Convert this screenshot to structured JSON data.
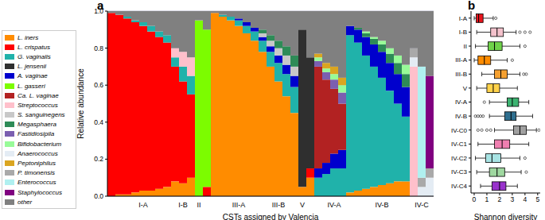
{
  "chart_data": [
    {
      "type": "bar",
      "panel_label": "a",
      "stacked": true,
      "grid": true,
      "legend": "left",
      "xlabel": "CSTs assigned by Valencia",
      "ylabel": "Relative abundance",
      "ylim": [
        0,
        1
      ],
      "yticks": [
        {
          "value": 0,
          "label": "0.0"
        },
        0.2,
        0.4,
        0.6,
        0.8,
        {
          "value": 1,
          "label": "1.0"
        }
      ],
      "categories": [
        null,
        null,
        null,
        null,
        "I-A",
        null,
        null,
        null,
        null,
        "I-B",
        null,
        "II",
        null,
        null,
        null,
        null,
        "III-A",
        null,
        null,
        null,
        null,
        "III-B",
        null,
        null,
        "V",
        null,
        null,
        null,
        "IV-A",
        null,
        null,
        null,
        null,
        null,
        "IV-B",
        null,
        null,
        null,
        null,
        "IV-C",
        null
      ],
      "series": [
        {
          "name": "L. iners",
          "color": "#ff8c00",
          "values": [
            0,
            0.01,
            0.01,
            0.02,
            0.03,
            0.03,
            0.04,
            0.05,
            0.08,
            0.07,
            0.1,
            0,
            0,
            0.99,
            0.97,
            0.95,
            0.92,
            0.88,
            0.84,
            0.78,
            0.7,
            0.62,
            0.54,
            0.45,
            0.05,
            0.1,
            0,
            0,
            0,
            0,
            0.02,
            0.03,
            0.04,
            0.05,
            0.06,
            0.07,
            0.08,
            0.08,
            0,
            0,
            0
          ]
        },
        {
          "name": "L. crispatus",
          "color": "#ff0000",
          "values": [
            0.99,
            0.97,
            0.95,
            0.92,
            0.89,
            0.86,
            0.82,
            0.78,
            0.62,
            0.55,
            0.45,
            0,
            0.05,
            0,
            0,
            0,
            0,
            0,
            0,
            0,
            0,
            0,
            0,
            0,
            0,
            0.05,
            0,
            0,
            0,
            0,
            0,
            0,
            0,
            0,
            0,
            0,
            0,
            0,
            0,
            0,
            0
          ]
        },
        {
          "name": "G. vaginalis",
          "color": "#20b2aa",
          "values": [
            0,
            0,
            0.01,
            0.01,
            0.02,
            0.03,
            0.03,
            0.04,
            0.05,
            0.08,
            0.1,
            0,
            0,
            0,
            0.01,
            0.02,
            0.03,
            0.04,
            0.05,
            0.06,
            0.08,
            0.1,
            0.12,
            0.14,
            0,
            0,
            0.1,
            0.12,
            0.15,
            0.15,
            0.85,
            0.8,
            0.72,
            0.65,
            0.58,
            0.5,
            0.42,
            0.35,
            0,
            0,
            0
          ]
        },
        {
          "name": "L. jensenii",
          "color": "#2f2f2f",
          "values": [
            0,
            0,
            0,
            0,
            0,
            0,
            0,
            0,
            0,
            0,
            0,
            0,
            0,
            0,
            0,
            0,
            0,
            0,
            0,
            0,
            0,
            0,
            0,
            0,
            0.85,
            0.6,
            0,
            0,
            0,
            0,
            0,
            0,
            0,
            0,
            0,
            0,
            0,
            0,
            0,
            0,
            0
          ]
        },
        {
          "name": "A. vaginae",
          "color": "#0000cd",
          "values": [
            0,
            0,
            0,
            0,
            0,
            0,
            0,
            0,
            0,
            0,
            0,
            0,
            0,
            0,
            0,
            0,
            0.01,
            0.02,
            0.02,
            0.02,
            0.03,
            0.04,
            0.05,
            0.06,
            0,
            0,
            0.05,
            0.06,
            0.08,
            0.1,
            0.05,
            0.07,
            0.1,
            0.12,
            0.14,
            0.15,
            0.16,
            0.16,
            0,
            0,
            0
          ]
        },
        {
          "name": "L. gasseri",
          "color": "#7cfc00",
          "values": [
            0,
            0,
            0,
            0,
            0,
            0,
            0,
            0,
            0,
            0,
            0,
            0.95,
            0.85,
            0,
            0,
            0,
            0,
            0,
            0,
            0,
            0,
            0,
            0,
            0,
            0,
            0,
            0,
            0,
            0,
            0,
            0,
            0,
            0,
            0,
            0,
            0,
            0,
            0,
            0,
            0,
            0
          ]
        },
        {
          "name": "Ca. L. vaginae",
          "color": "#b22222",
          "values": [
            0,
            0,
            0,
            0,
            0,
            0,
            0,
            0,
            0,
            0,
            0,
            0,
            0,
            0,
            0,
            0,
            0,
            0,
            0,
            0,
            0,
            0,
            0,
            0,
            0,
            0,
            0.55,
            0.45,
            0.35,
            0.25,
            0,
            0,
            0,
            0,
            0,
            0,
            0,
            0,
            0,
            0,
            0
          ]
        },
        {
          "name": "Streptococcus",
          "color": "#ffc0cb",
          "values": [
            0,
            0,
            0,
            0,
            0,
            0,
            0,
            0,
            0.05,
            0.08,
            0.1,
            0,
            0,
            0,
            0,
            0,
            0,
            0,
            0,
            0,
            0,
            0,
            0,
            0,
            0,
            0,
            0,
            0,
            0,
            0,
            0,
            0,
            0,
            0,
            0,
            0,
            0,
            0,
            0.7,
            0,
            0
          ]
        },
        {
          "name": "S. sanguinegens",
          "color": "#c8c8c8",
          "values": [
            0,
            0,
            0,
            0,
            0,
            0,
            0,
            0,
            0,
            0,
            0,
            0,
            0,
            0,
            0,
            0,
            0,
            0,
            0,
            0.02,
            0.03,
            0.04,
            0.05,
            0.05,
            0,
            0,
            0,
            0,
            0,
            0,
            0,
            0,
            0,
            0,
            0,
            0,
            0,
            0,
            0,
            0,
            0
          ]
        },
        {
          "name": "Megasphaera",
          "color": "#2e8b57",
          "values": [
            0,
            0,
            0,
            0,
            0,
            0,
            0,
            0,
            0,
            0,
            0,
            0,
            0,
            0,
            0,
            0,
            0,
            0,
            0,
            0.02,
            0.03,
            0.04,
            0.05,
            0.06,
            0,
            0,
            0,
            0,
            0,
            0,
            0,
            0.01,
            0.02,
            0.03,
            0.04,
            0.05,
            0.06,
            0.07,
            0,
            0,
            0
          ]
        },
        {
          "name": "Fastidiosipila",
          "color": "#7b5fb0",
          "values": [
            0,
            0,
            0,
            0,
            0,
            0,
            0,
            0,
            0,
            0,
            0,
            0,
            0,
            0,
            0,
            0,
            0,
            0,
            0,
            0,
            0,
            0,
            0,
            0,
            0,
            0,
            0.03,
            0.04,
            0.05,
            0.06,
            0,
            0,
            0,
            0,
            0,
            0,
            0,
            0,
            0,
            0,
            0
          ]
        },
        {
          "name": "Bifidobacterium",
          "color": "#98fb98",
          "values": [
            0,
            0,
            0,
            0,
            0,
            0,
            0,
            0,
            0,
            0,
            0,
            0,
            0,
            0,
            0,
            0,
            0,
            0,
            0,
            0,
            0,
            0,
            0,
            0,
            0,
            0,
            0.02,
            0.02,
            0.03,
            0.04,
            0,
            0,
            0.01,
            0.01,
            0.02,
            0.03,
            0.04,
            0.05,
            0,
            0,
            0
          ]
        },
        {
          "name": "Anaerococcus",
          "color": "#e4ecf4",
          "values": [
            0,
            0,
            0,
            0,
            0,
            0,
            0,
            0,
            0,
            0,
            0,
            0,
            0,
            0,
            0,
            0,
            0,
            0,
            0,
            0,
            0,
            0,
            0,
            0,
            0,
            0,
            0,
            0,
            0,
            0,
            0,
            0,
            0,
            0,
            0,
            0,
            0,
            0,
            0.05,
            0.05,
            0.1
          ]
        },
        {
          "name": "Peptoniphilus",
          "color": "#daa520",
          "values": [
            0,
            0,
            0,
            0,
            0,
            0,
            0,
            0,
            0,
            0,
            0,
            0,
            0,
            0,
            0,
            0,
            0,
            0,
            0,
            0,
            0,
            0,
            0,
            0,
            0,
            0,
            0.02,
            0.03,
            0.04,
            0.04,
            0,
            0,
            0,
            0,
            0,
            0,
            0,
            0,
            0,
            0,
            0
          ]
        },
        {
          "name": "P. timonensis",
          "color": "#a9a9a9",
          "values": [
            0,
            0,
            0,
            0,
            0,
            0,
            0,
            0,
            0,
            0,
            0,
            0,
            0,
            0,
            0,
            0,
            0,
            0,
            0,
            0,
            0,
            0,
            0,
            0,
            0,
            0,
            0,
            0,
            0,
            0,
            0,
            0,
            0,
            0,
            0,
            0,
            0,
            0,
            0.05,
            0.05,
            0.05
          ]
        },
        {
          "name": "Enterococcus",
          "color": "#b0f0f0",
          "values": [
            0,
            0,
            0,
            0,
            0,
            0,
            0,
            0,
            0,
            0,
            0,
            0,
            0,
            0,
            0,
            0,
            0,
            0,
            0,
            0,
            0,
            0,
            0,
            0,
            0,
            0,
            0,
            0,
            0,
            0,
            0,
            0,
            0,
            0,
            0,
            0,
            0,
            0,
            0,
            0.6,
            0
          ]
        },
        {
          "name": "Staphylococcus",
          "color": "#800080",
          "values": [
            0,
            0,
            0,
            0,
            0,
            0,
            0,
            0,
            0,
            0,
            0,
            0,
            0,
            0,
            0,
            0,
            0,
            0,
            0,
            0,
            0,
            0,
            0,
            0,
            0,
            0,
            0,
            0,
            0,
            0,
            0,
            0,
            0,
            0,
            0,
            0,
            0,
            0,
            0,
            0,
            0.5
          ]
        },
        {
          "name": "other",
          "color": "#808080",
          "values": [
            0.01,
            0.02,
            0.03,
            0.05,
            0.06,
            0.08,
            0.11,
            0.13,
            0.2,
            0.22,
            0.25,
            0.05,
            0.1,
            0.01,
            0.02,
            0.03,
            0.04,
            0.06,
            0.09,
            0.1,
            0.13,
            0.16,
            0.19,
            0.24,
            0.1,
            0.25,
            0.23,
            0.28,
            0.3,
            0.36,
            0.08,
            0.09,
            0.11,
            0.14,
            0.16,
            0.2,
            0.24,
            0.29,
            0.2,
            0.3,
            0.35
          ]
        }
      ]
    },
    {
      "type": "boxplot",
      "panel_label": "b",
      "orientation": "horizontal",
      "xlabel": "Shannon diversity",
      "xlim": [
        -0.25,
        5.2
      ],
      "xticks": [
        0,
        1,
        2,
        3,
        4,
        5
      ],
      "categories": [
        "I-A",
        "I-B",
        "II",
        "III-A",
        "III-B",
        "V",
        "IV-A",
        "IV-B",
        "IV-C0",
        "IV-C1",
        "IV-C2",
        "IV-C3",
        "IV-C4"
      ],
      "colors": [
        "#e8141c",
        "#f4c2cc",
        "#6fd24a",
        "#ff8c00",
        "#f5a030",
        "#ffd24a",
        "#3cb371",
        "#2f6f8f",
        "#a0a0a0",
        "#ef7fb0",
        "#a8e4e4",
        "#9fd8a0",
        "#9932cc"
      ],
      "whisker_low": [
        0,
        0.2,
        0.1,
        0,
        0.6,
        0.2,
        1.2,
        1.2,
        1.6,
        0.3,
        0.1,
        0.2,
        0.5
      ],
      "q1": [
        0.15,
        1.3,
        1.1,
        0.3,
        1.6,
        1.0,
        2.6,
        2.4,
        3.1,
        1.6,
        0.9,
        1.2,
        1.4
      ],
      "median": [
        0.35,
        1.8,
        1.6,
        0.8,
        2.1,
        1.5,
        3.0,
        2.9,
        3.6,
        2.2,
        1.4,
        1.8,
        2.0
      ],
      "q3": [
        0.7,
        2.3,
        2.2,
        1.3,
        2.6,
        2.0,
        3.5,
        3.3,
        4.1,
        2.8,
        2.1,
        2.4,
        2.5
      ],
      "whisker_high": [
        1.5,
        3.3,
        3.6,
        2.6,
        3.6,
        3.4,
        4.3,
        4.6,
        4.9,
        4.3,
        3.6,
        3.7,
        3.4
      ],
      "outliers": [
        [
          1.7
        ],
        [
          3.6,
          4.0,
          4.4
        ],
        [
          4.0
        ],
        [
          3.0
        ],
        [
          3.9,
          4.1
        ],
        [],
        [
          0.8
        ],
        [
          0.1,
          0.3,
          0.5,
          0.7
        ],
        [
          0.3,
          0.6,
          1.0,
          1.3,
          5.1
        ],
        [],
        [
          4.0
        ],
        [
          4.1
        ],
        []
      ]
    }
  ]
}
